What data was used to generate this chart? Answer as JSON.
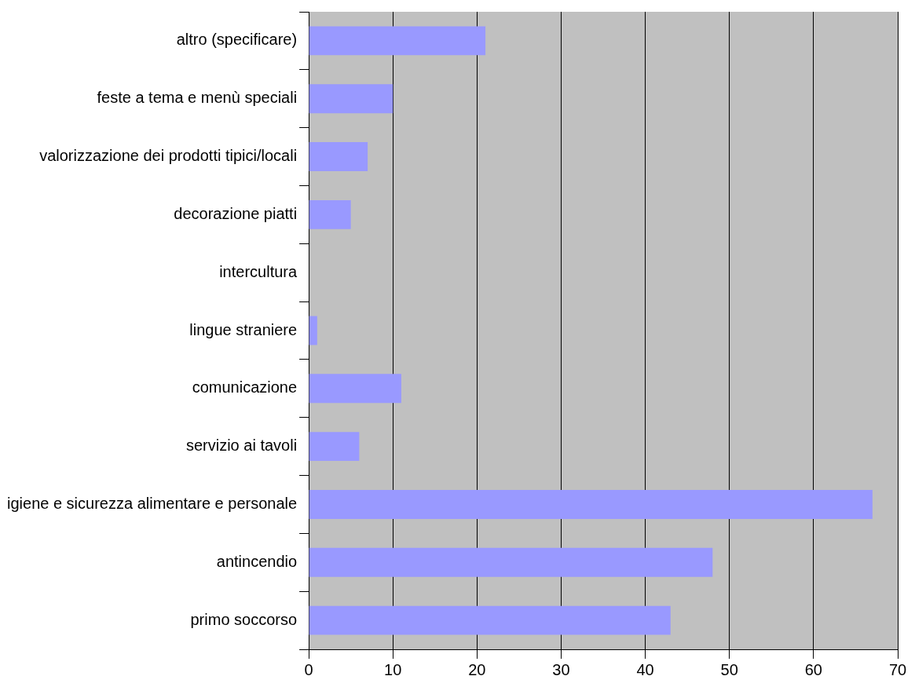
{
  "chart_data": {
    "type": "bar",
    "orientation": "horizontal",
    "categories": [
      "altro (specificare)",
      "feste a tema e menù speciali",
      "valorizzazione dei prodotti tipici/locali",
      "decorazione piatti",
      "intercultura",
      "lingue straniere",
      "comunicazione",
      "servizio ai tavoli",
      "igiene e sicurezza alimentare e personale",
      "antincendio",
      "primo soccorso"
    ],
    "values": [
      21,
      10,
      7,
      5,
      0,
      1,
      11,
      6,
      67,
      48,
      43
    ],
    "color": "#9999ff",
    "xlim": [
      0,
      70
    ],
    "xticks": [
      0,
      10,
      20,
      30,
      40,
      50,
      60,
      70
    ],
    "grid": "x",
    "legend": false
  }
}
